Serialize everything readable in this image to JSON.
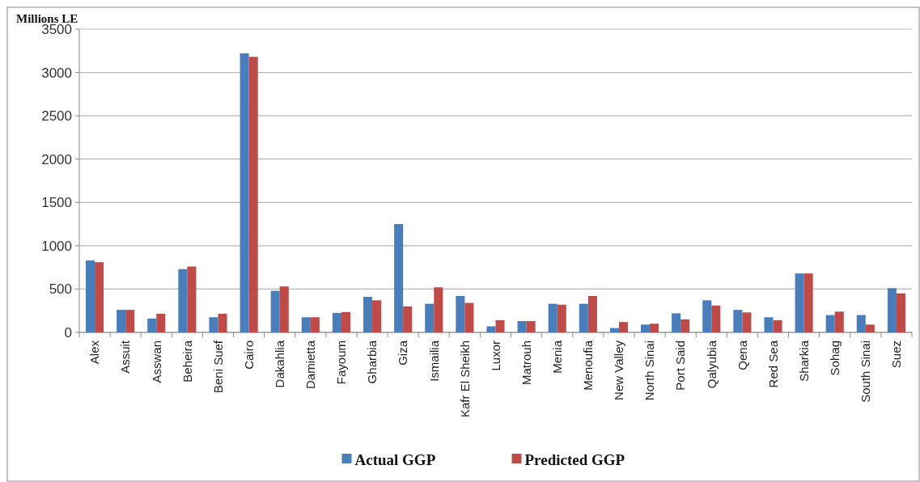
{
  "chart_data": {
    "type": "bar",
    "ylabel": "Millions LE",
    "categories": [
      "Alex",
      "Assuit",
      "Asswan",
      "Beheira",
      "Beni Suef",
      "Cairo",
      "Dakahlia",
      "Damietta",
      "Fayoum",
      "Gharbia",
      "Giza",
      "Ismailia",
      "Kafr El Sheikh",
      "Luxor",
      "Matrouh",
      "Menia",
      "Menoufia",
      "New Valley",
      "North Sinai",
      "Port Said",
      "Qalyubia",
      "Qena",
      "Red Sea",
      "Sharkia",
      "Sohag",
      "South Sinai",
      "Suez"
    ],
    "series": [
      {
        "name": "Actual GGP",
        "color": "#4a7ebb",
        "values": [
          830,
          260,
          160,
          730,
          175,
          3220,
          480,
          175,
          225,
          410,
          1250,
          330,
          420,
          70,
          130,
          330,
          330,
          50,
          90,
          220,
          370,
          260,
          175,
          680,
          200,
          200,
          510
        ]
      },
      {
        "name": "Predicted GGP",
        "color": "#be4b48",
        "values": [
          810,
          260,
          215,
          760,
          215,
          3180,
          530,
          175,
          235,
          370,
          300,
          520,
          340,
          140,
          130,
          320,
          420,
          120,
          100,
          150,
          310,
          230,
          140,
          680,
          240,
          90,
          450
        ]
      }
    ],
    "ylim": [
      0,
      3500
    ],
    "yticks": [
      0,
      500,
      1000,
      1500,
      2000,
      2500,
      3000,
      3500
    ],
    "grid": "y",
    "legend": "bottom"
  }
}
